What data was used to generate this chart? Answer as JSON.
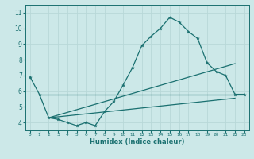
{
  "title": "",
  "xlabel": "Humidex (Indice chaleur)",
  "bg_color": "#cce8e8",
  "grid_color": "#b8d8d8",
  "line_color": "#1a7070",
  "xlim": [
    -0.5,
    23.5
  ],
  "ylim": [
    3.5,
    11.5
  ],
  "xticks": [
    0,
    1,
    2,
    3,
    4,
    5,
    6,
    7,
    8,
    9,
    10,
    11,
    12,
    13,
    14,
    15,
    16,
    17,
    18,
    19,
    20,
    21,
    22,
    23
  ],
  "yticks": [
    4,
    5,
    6,
    7,
    8,
    9,
    10,
    11
  ],
  "curve1_x": [
    0,
    1,
    2,
    3,
    4,
    5,
    6,
    7,
    8,
    9,
    10,
    11,
    12,
    13,
    14,
    15,
    16,
    17,
    18,
    19,
    20,
    21,
    22,
    23
  ],
  "curve1_y": [
    6.9,
    5.8,
    4.3,
    4.2,
    4.0,
    3.8,
    4.0,
    3.8,
    4.7,
    5.35,
    6.4,
    7.5,
    8.9,
    9.5,
    10.0,
    10.7,
    10.4,
    9.8,
    9.35,
    7.8,
    7.25,
    7.0,
    5.8,
    5.8
  ],
  "curve2_x": [
    1,
    23
  ],
  "curve2_y": [
    5.8,
    5.8
  ],
  "curve3_x": [
    2,
    22
  ],
  "curve3_y": [
    4.3,
    7.75
  ],
  "curve4_x": [
    2,
    22
  ],
  "curve4_y": [
    4.3,
    5.55
  ]
}
